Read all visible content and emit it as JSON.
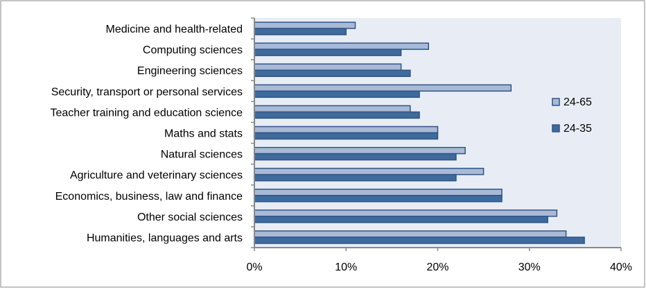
{
  "chart_data": {
    "type": "bar",
    "orientation": "horizontal",
    "title": "",
    "xlabel": "",
    "ylabel": "",
    "xlim": [
      0,
      40
    ],
    "x_ticks": [
      "0%",
      "10%",
      "20%",
      "30%",
      "40%"
    ],
    "x_tick_values": [
      0,
      10,
      20,
      30,
      40
    ],
    "grid": false,
    "legend_position": "right",
    "categories": [
      "Medicine and health-related",
      "Computing sciences",
      "Engineering sciences",
      "Security, transport or personal services",
      "Teacher training and education science",
      "Maths and stats",
      "Natural sciences",
      "Agriculture and veterinary sciences",
      "Economics, business, law and finance",
      "Other social sciences",
      "Humanities, languages and arts"
    ],
    "series": [
      {
        "name": "24-65",
        "color": "#a9b9d6",
        "values": [
          11,
          19,
          16,
          28,
          17,
          20,
          23,
          25,
          27,
          33,
          34
        ]
      },
      {
        "name": "24-35",
        "color": "#3e6a9c",
        "values": [
          10,
          16,
          17,
          18,
          18,
          20,
          22,
          22,
          27,
          32,
          36
        ]
      }
    ]
  }
}
